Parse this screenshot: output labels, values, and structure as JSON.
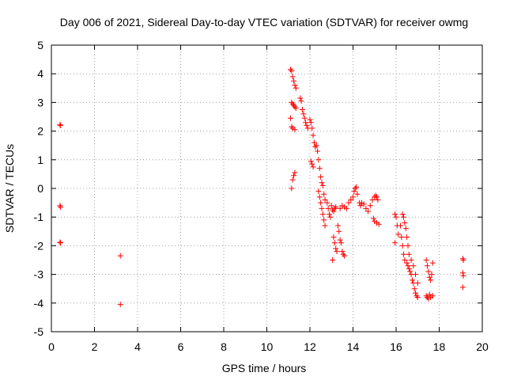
{
  "chart_data": {
    "type": "scatter",
    "title": "Day 006 of 2021, Sidereal Day-to-day VTEC variation (SDTVAR) for receiver owmg",
    "xlabel": "GPS time / hours",
    "ylabel": "SDTVAR / TECUs",
    "xlim": [
      0,
      20
    ],
    "ylim": [
      -5,
      5
    ],
    "xticks": [
      0,
      2,
      4,
      6,
      8,
      10,
      12,
      14,
      16,
      18,
      20
    ],
    "yticks": [
      -5,
      -4,
      -3,
      -2,
      -1,
      0,
      1,
      2,
      3,
      4,
      5
    ],
    "xtick_labels": [
      "0",
      "2",
      "4",
      "6",
      "8",
      "10",
      "12",
      "14",
      "16",
      "18",
      "20"
    ],
    "ytick_labels": [
      "-5",
      "-4",
      "-3",
      "-2",
      "-1",
      "0",
      "1",
      "2",
      "3",
      "4",
      "5"
    ],
    "grid": true,
    "marker": "+",
    "color": "#ff0000",
    "series": [
      {
        "name": "SDTVAR",
        "points": [
          [
            0.4,
            2.22
          ],
          [
            0.42,
            2.2
          ],
          [
            0.4,
            -0.6
          ],
          [
            0.42,
            -0.65
          ],
          [
            0.4,
            -1.88
          ],
          [
            0.42,
            -1.9
          ],
          [
            3.2,
            -2.35
          ],
          [
            3.2,
            -4.05
          ],
          [
            11.1,
            4.15
          ],
          [
            11.15,
            4.1
          ],
          [
            11.2,
            3.9
          ],
          [
            11.25,
            3.75
          ],
          [
            11.3,
            3.6
          ],
          [
            11.35,
            3.5
          ],
          [
            11.15,
            3.0
          ],
          [
            11.2,
            2.95
          ],
          [
            11.25,
            2.9
          ],
          [
            11.3,
            2.85
          ],
          [
            11.35,
            2.8
          ],
          [
            11.1,
            2.45
          ],
          [
            11.15,
            2.15
          ],
          [
            11.2,
            2.1
          ],
          [
            11.3,
            2.05
          ],
          [
            11.15,
            0.0
          ],
          [
            11.2,
            0.3
          ],
          [
            11.25,
            0.45
          ],
          [
            11.3,
            0.55
          ],
          [
            11.55,
            3.15
          ],
          [
            11.6,
            3.05
          ],
          [
            11.65,
            2.75
          ],
          [
            11.7,
            2.6
          ],
          [
            11.75,
            2.45
          ],
          [
            11.8,
            2.3
          ],
          [
            11.85,
            2.2
          ],
          [
            11.9,
            2.1
          ],
          [
            12.0,
            2.4
          ],
          [
            12.05,
            2.3
          ],
          [
            12.1,
            2.1
          ],
          [
            12.15,
            1.85
          ],
          [
            12.2,
            1.6
          ],
          [
            12.25,
            1.45
          ],
          [
            12.05,
            0.95
          ],
          [
            12.1,
            0.85
          ],
          [
            12.15,
            0.75
          ],
          [
            12.3,
            1.5
          ],
          [
            12.35,
            1.3
          ],
          [
            12.4,
            1.0
          ],
          [
            12.45,
            0.7
          ],
          [
            12.5,
            0.4
          ],
          [
            12.55,
            0.2
          ],
          [
            12.4,
            -0.1
          ],
          [
            12.45,
            -0.3
          ],
          [
            12.5,
            -0.5
          ],
          [
            12.55,
            -0.7
          ],
          [
            12.6,
            -0.9
          ],
          [
            12.65,
            -1.1
          ],
          [
            12.7,
            -1.3
          ],
          [
            12.6,
            0.1
          ],
          [
            12.65,
            -0.2
          ],
          [
            12.7,
            -0.4
          ],
          [
            12.8,
            -0.5
          ],
          [
            12.85,
            -0.7
          ],
          [
            12.9,
            -0.9
          ],
          [
            12.95,
            -1.0
          ],
          [
            13.0,
            -0.6
          ],
          [
            13.05,
            -0.75
          ],
          [
            13.1,
            -0.8
          ],
          [
            13.15,
            -0.7
          ],
          [
            13.2,
            -0.65
          ],
          [
            13.1,
            -1.7
          ],
          [
            13.15,
            -1.9
          ],
          [
            13.2,
            -2.1
          ],
          [
            13.25,
            -2.2
          ],
          [
            13.05,
            -2.5
          ],
          [
            13.3,
            -1.3
          ],
          [
            13.35,
            -1.5
          ],
          [
            13.4,
            -1.8
          ],
          [
            13.45,
            -1.9
          ],
          [
            13.5,
            -2.2
          ],
          [
            13.55,
            -2.3
          ],
          [
            13.6,
            -2.35
          ],
          [
            13.4,
            -0.7
          ],
          [
            13.5,
            -0.6
          ],
          [
            13.6,
            -0.65
          ],
          [
            13.7,
            -0.7
          ],
          [
            13.8,
            -0.5
          ],
          [
            13.9,
            -0.4
          ],
          [
            14.0,
            -0.3
          ],
          [
            14.05,
            -0.1
          ],
          [
            14.1,
            0.0
          ],
          [
            14.15,
            0.05
          ],
          [
            14.2,
            -0.2
          ],
          [
            14.3,
            -0.5
          ],
          [
            14.35,
            -0.6
          ],
          [
            14.4,
            -0.5
          ],
          [
            14.5,
            -0.55
          ],
          [
            14.6,
            -0.7
          ],
          [
            14.7,
            -0.8
          ],
          [
            14.8,
            -0.6
          ],
          [
            14.9,
            -0.4
          ],
          [
            15.0,
            -0.3
          ],
          [
            15.05,
            -0.25
          ],
          [
            15.1,
            -0.3
          ],
          [
            15.15,
            -0.4
          ],
          [
            14.95,
            -1.05
          ],
          [
            15.0,
            -1.15
          ],
          [
            15.1,
            -1.2
          ],
          [
            15.2,
            -1.25
          ],
          [
            15.95,
            -0.9
          ],
          [
            16.0,
            -1.0
          ],
          [
            16.05,
            -1.3
          ],
          [
            16.1,
            -1.6
          ],
          [
            15.95,
            -1.9
          ],
          [
            16.2,
            -1.3
          ],
          [
            16.25,
            -1.7
          ],
          [
            16.3,
            -2.0
          ],
          [
            16.35,
            -2.3
          ],
          [
            16.4,
            -2.5
          ],
          [
            16.3,
            -0.9
          ],
          [
            16.35,
            -1.0
          ],
          [
            16.4,
            -1.2
          ],
          [
            16.45,
            -1.4
          ],
          [
            16.5,
            -1.7
          ],
          [
            16.55,
            -2.0
          ],
          [
            16.6,
            -2.3
          ],
          [
            16.5,
            -2.6
          ],
          [
            16.55,
            -2.7
          ],
          [
            16.6,
            -2.8
          ],
          [
            16.65,
            -2.9
          ],
          [
            16.7,
            -3.0
          ],
          [
            16.75,
            -3.2
          ],
          [
            16.8,
            -3.3
          ],
          [
            16.85,
            -3.5
          ],
          [
            16.9,
            -3.65
          ],
          [
            16.95,
            -3.75
          ],
          [
            17.0,
            -3.8
          ],
          [
            16.7,
            -2.5
          ],
          [
            16.8,
            -2.7
          ],
          [
            16.9,
            -3.0
          ],
          [
            17.0,
            -3.3
          ],
          [
            17.4,
            -2.5
          ],
          [
            17.45,
            -2.7
          ],
          [
            17.5,
            -2.9
          ],
          [
            17.55,
            -3.1
          ],
          [
            17.6,
            -3.2
          ],
          [
            17.65,
            -3.0
          ],
          [
            17.7,
            -2.6
          ],
          [
            17.4,
            -3.75
          ],
          [
            17.45,
            -3.8
          ],
          [
            17.5,
            -3.85
          ],
          [
            17.55,
            -3.7
          ],
          [
            17.6,
            -3.8
          ],
          [
            17.7,
            -3.75
          ],
          [
            19.1,
            -2.45
          ],
          [
            19.12,
            -2.5
          ],
          [
            19.1,
            -2.95
          ],
          [
            19.12,
            -3.05
          ],
          [
            19.1,
            -3.45
          ]
        ]
      }
    ]
  }
}
